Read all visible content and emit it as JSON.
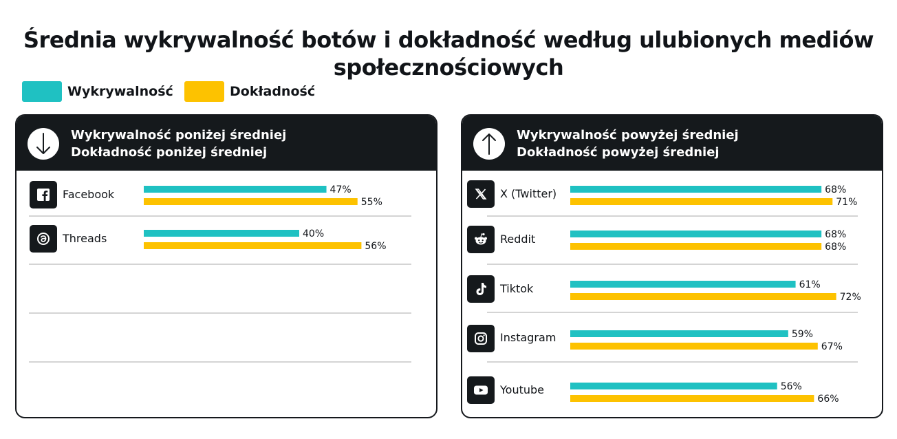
{
  "title_line1": "Średnia wykrywalność botów i dokładność według ulubionych mediów",
  "title_line2": "społecznościowych",
  "colors": {
    "detection": "#1fc1c2",
    "accuracy": "#fdc200",
    "dark": "#15191c"
  },
  "chart_data": {
    "type": "bar",
    "orientation": "horizontal",
    "title": "Średnia wykrywalność botów i dokładność według ulubionych mediów społecznościowych",
    "legend": [
      {
        "name": "Wykrywalność",
        "color": "#1fc1c2"
      },
      {
        "name": "Dokładność",
        "color": "#fdc200"
      }
    ],
    "legend_position": "top-left",
    "panels": [
      {
        "header_line1": "Wykrywalność poniżej średniej",
        "header_line2": "Dokładność poniżej średniej",
        "header_icon": "arrow-down-icon",
        "categories": [
          "Facebook",
          "Threads"
        ],
        "icons": [
          "facebook-icon",
          "threads-icon"
        ],
        "series": [
          {
            "name": "Wykrywalność",
            "values": [
              47,
              40
            ],
            "labels": [
              "47%",
              "40%"
            ]
          },
          {
            "name": "Dokładność",
            "values": [
              55,
              56
            ],
            "labels": [
              "55%",
              "56%"
            ]
          }
        ]
      },
      {
        "header_line1": "Wykrywalność powyżej średniej",
        "header_line2": "Dokładność powyżej średniej",
        "header_icon": "arrow-up-icon",
        "categories": [
          "X (Twitter)",
          "Reddit",
          "Tiktok",
          "Instagram",
          "Youtube"
        ],
        "icons": [
          "x-twitter-icon",
          "reddit-icon",
          "tiktok-icon",
          "instagram-icon",
          "youtube-icon"
        ],
        "series": [
          {
            "name": "Wykrywalność",
            "values": [
              68,
              68,
              61,
              59,
              56
            ],
            "labels": [
              "68%",
              "68%",
              "61%",
              "59%",
              "56%"
            ]
          },
          {
            "name": "Dokładność",
            "values": [
              71,
              68,
              72,
              67,
              66
            ],
            "labels": [
              "71%",
              "68%",
              "72%",
              "67%",
              "66%"
            ]
          }
        ]
      }
    ]
  }
}
